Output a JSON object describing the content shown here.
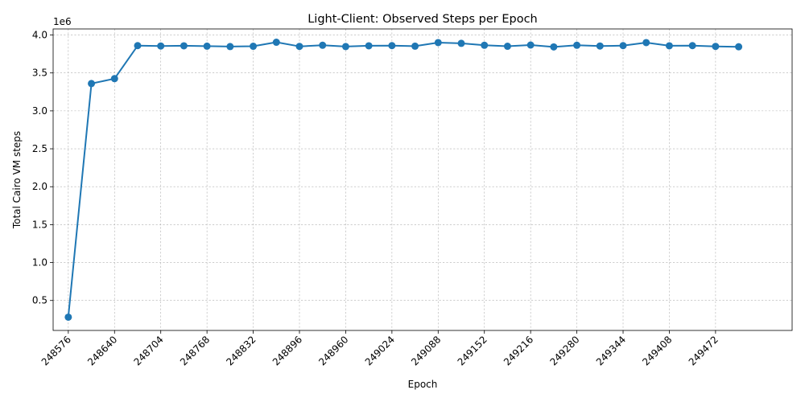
{
  "chart_data": {
    "type": "line",
    "title": "Light-Client: Observed Steps per Epoch",
    "xlabel": "Epoch",
    "ylabel": "Total Cairo VM steps",
    "y_offset_label": "1e6",
    "xlim": [
      248555,
      249578
    ],
    "ylim": [
      105000,
      4080000
    ],
    "x_ticks": [
      248576,
      248640,
      248704,
      248768,
      248832,
      248896,
      248960,
      249024,
      249088,
      249152,
      249216,
      249280,
      249344,
      249408,
      249472
    ],
    "y_ticks": [
      {
        "value": 500000,
        "label": "0.5"
      },
      {
        "value": 1000000,
        "label": "1.0"
      },
      {
        "value": 1500000,
        "label": "1.5"
      },
      {
        "value": 2000000,
        "label": "2.0"
      },
      {
        "value": 2500000,
        "label": "2.5"
      },
      {
        "value": 3000000,
        "label": "3.0"
      },
      {
        "value": 3500000,
        "label": "3.5"
      },
      {
        "value": 4000000,
        "label": "4.0"
      }
    ],
    "grid": true,
    "legend": "none",
    "series": [
      {
        "color": "#1f77b4",
        "x": [
          248576,
          248608,
          248640,
          248672,
          248704,
          248736,
          248768,
          248800,
          248832,
          248864,
          248896,
          248928,
          248960,
          248992,
          249024,
          249056,
          249088,
          249120,
          249152,
          249184,
          249216,
          249248,
          249280,
          249312,
          249344,
          249376,
          249408,
          249440,
          249472,
          249504
        ],
        "y": [
          280000,
          3360000,
          3425000,
          3860000,
          3855000,
          3858000,
          3853000,
          3848000,
          3852000,
          3905000,
          3850000,
          3865000,
          3848000,
          3858000,
          3860000,
          3853000,
          3900000,
          3890000,
          3865000,
          3852000,
          3868000,
          3843000,
          3865000,
          3855000,
          3860000,
          3900000,
          3858000,
          3860000,
          3850000,
          3845000
        ]
      }
    ]
  }
}
